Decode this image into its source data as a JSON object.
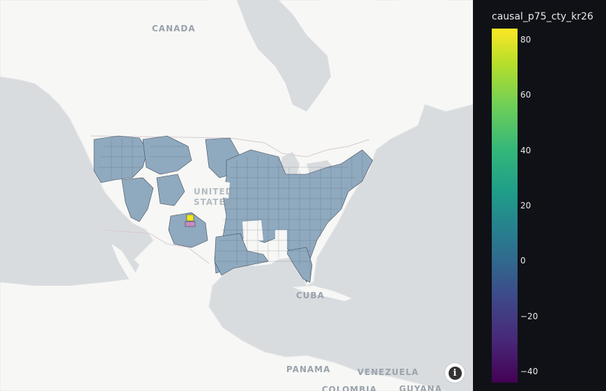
{
  "map": {
    "labels": {
      "canada": "CANADA",
      "united": "UNITED",
      "states": "STATES",
      "cuba": "CUBA",
      "panama": "PANAMA",
      "venezuela": "VENEZUELA",
      "colombia": "COLOMBIA",
      "guyana": "GUYANA"
    },
    "info_icon": "info-icon",
    "county_fill_color": "#8fa9bf",
    "county_border_color": "#3f4a55"
  },
  "colorbar": {
    "title": "causal_p75_cty_kr26",
    "range": [
      -44,
      84
    ],
    "colorscale": "viridis",
    "ticks": [
      "80",
      "60",
      "40",
      "20",
      "0",
      "−20",
      "−40"
    ],
    "tick_values": [
      80,
      60,
      40,
      20,
      0,
      -20,
      -40
    ]
  },
  "chart_data": {
    "type": "choropleth",
    "title": "",
    "color_variable": "causal_p75_cty_kr26",
    "color_range": [
      -44,
      84
    ],
    "typical_value": 0,
    "outliers": [
      {
        "region": "high county (near Kansas/Colorado border)",
        "value": 84
      },
      {
        "region": "low county (near Kansas)",
        "value": -30
      }
    ]
  }
}
